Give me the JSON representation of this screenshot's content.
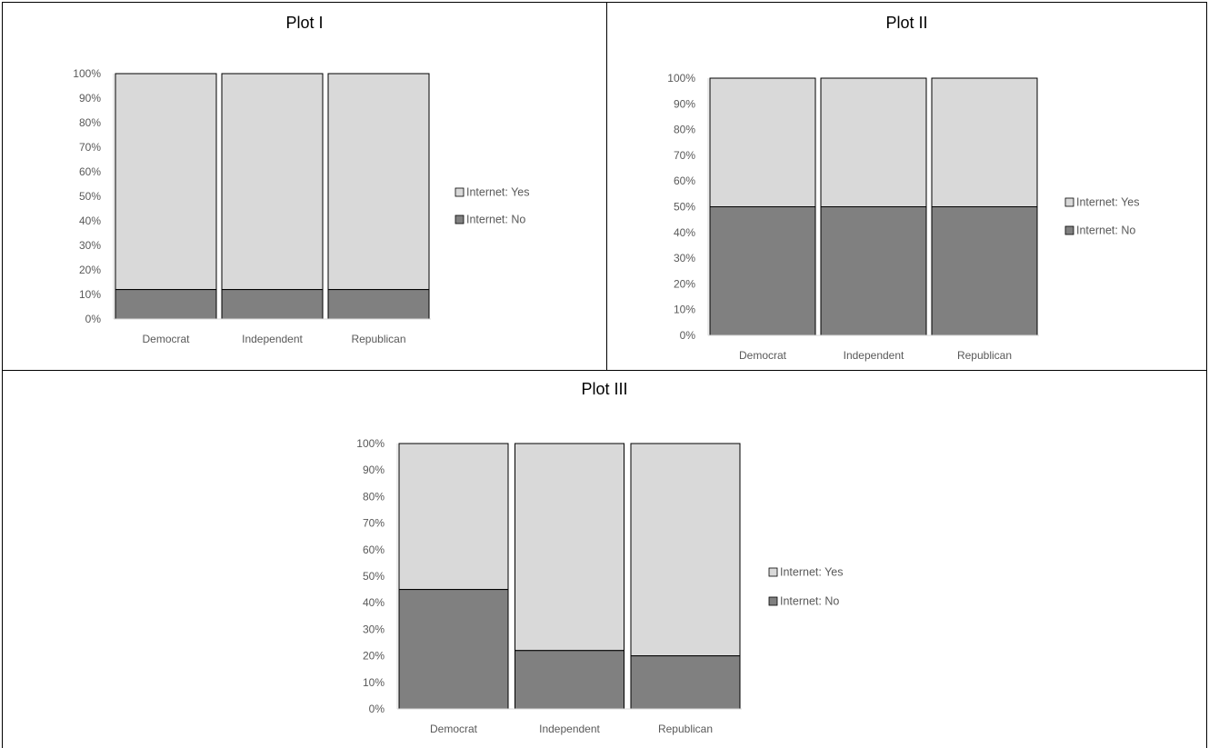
{
  "colors": {
    "no": "#808080",
    "yes": "#d9d9d9",
    "bar_stroke": "#000000",
    "axis": "#d9d9d9",
    "text": "#595959"
  },
  "chart_data": [
    {
      "type": "bar",
      "stacked": true,
      "percent_stacked": true,
      "title": "Plot I",
      "categories": [
        "Democrat",
        "Independent",
        "Republican"
      ],
      "series": [
        {
          "name": "Internet: No",
          "values": [
            12,
            12,
            12
          ]
        },
        {
          "name": "Internet: Yes",
          "values": [
            88,
            88,
            88
          ]
        }
      ],
      "yticks": [
        "0%",
        "10%",
        "20%",
        "30%",
        "40%",
        "50%",
        "60%",
        "70%",
        "80%",
        "90%",
        "100%"
      ],
      "ylim": [
        0,
        100
      ],
      "legend": "right",
      "legend_entries": [
        "Internet: Yes",
        "Internet: No"
      ],
      "grid": false
    },
    {
      "type": "bar",
      "stacked": true,
      "percent_stacked": true,
      "title": "Plot II",
      "categories": [
        "Democrat",
        "Independent",
        "Republican"
      ],
      "series": [
        {
          "name": "Internet: No",
          "values": [
            50,
            50,
            50
          ]
        },
        {
          "name": "Internet: Yes",
          "values": [
            50,
            50,
            50
          ]
        }
      ],
      "yticks": [
        "0%",
        "10%",
        "20%",
        "30%",
        "40%",
        "50%",
        "60%",
        "70%",
        "80%",
        "90%",
        "100%"
      ],
      "ylim": [
        0,
        100
      ],
      "legend": "right",
      "legend_entries": [
        "Internet: Yes",
        "Internet: No"
      ],
      "grid": false
    },
    {
      "type": "bar",
      "stacked": true,
      "percent_stacked": true,
      "title": "Plot III",
      "categories": [
        "Democrat",
        "Independent",
        "Republican"
      ],
      "series": [
        {
          "name": "Internet: No",
          "values": [
            45,
            22,
            20
          ]
        },
        {
          "name": "Internet: Yes",
          "values": [
            55,
            78,
            80
          ]
        }
      ],
      "yticks": [
        "0%",
        "10%",
        "20%",
        "30%",
        "40%",
        "50%",
        "60%",
        "70%",
        "80%",
        "90%",
        "100%"
      ],
      "ylim": [
        0,
        100
      ],
      "legend": "right",
      "legend_entries": [
        "Internet: Yes",
        "Internet: No"
      ],
      "grid": false
    }
  ]
}
